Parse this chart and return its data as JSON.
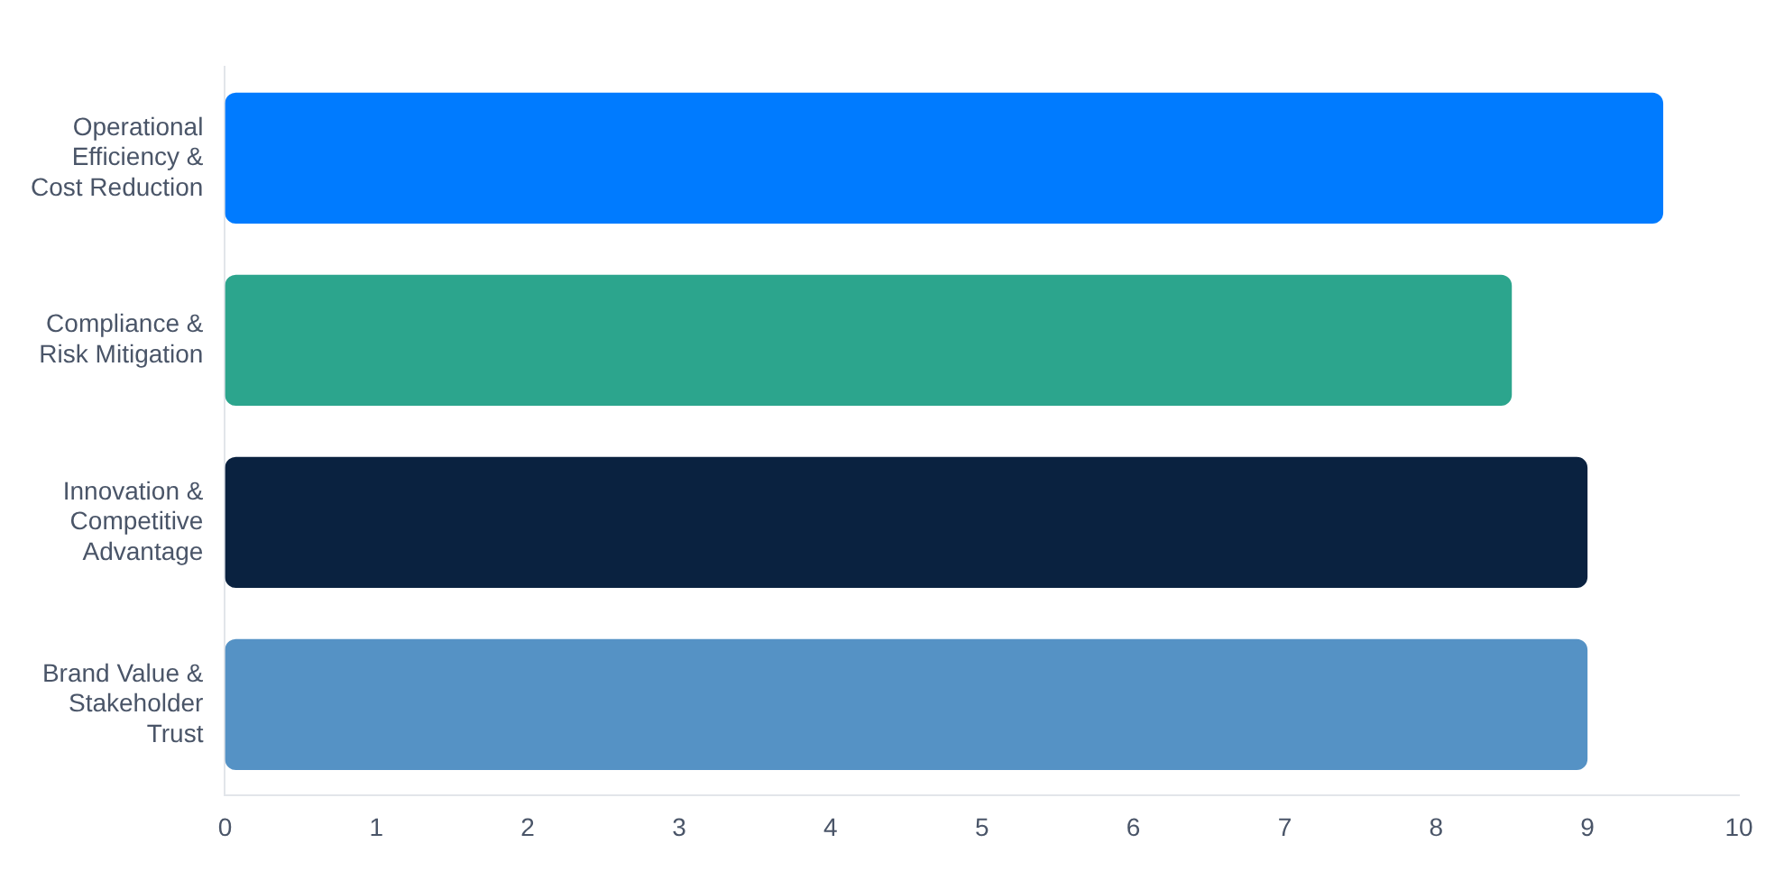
{
  "chart_data": {
    "type": "bar",
    "orientation": "horizontal",
    "categories": [
      "Operational Efficiency & Cost Reduction",
      "Compliance & Risk Mitigation",
      "Innovation & Competitive Advantage",
      "Brand Value & Stakeholder Trust"
    ],
    "values": [
      9.5,
      8.5,
      9,
      9
    ],
    "colors": [
      "#007bff",
      "#2ca58d",
      "#0a2240",
      "#5592c5"
    ],
    "xlim": [
      0,
      10
    ],
    "xticks": [
      0,
      1,
      2,
      3,
      4,
      5,
      6,
      7,
      8,
      9,
      10
    ],
    "grid": false,
    "legend": false
  }
}
